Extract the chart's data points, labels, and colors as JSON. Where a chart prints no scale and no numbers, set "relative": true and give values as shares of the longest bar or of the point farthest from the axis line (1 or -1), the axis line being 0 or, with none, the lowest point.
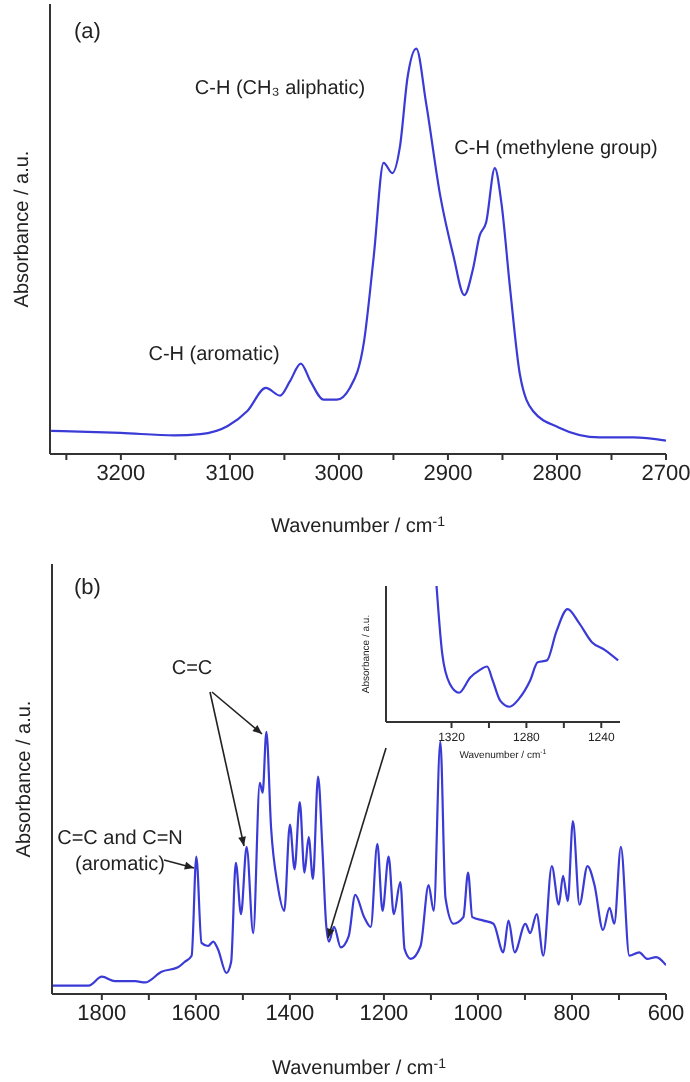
{
  "chart_data": [
    {
      "type": "line",
      "title": "(a)",
      "xlabel": "Wavenumber / cm$^{-1}$",
      "ylabel": "Absorbance / a.u.",
      "relative": true,
      "tick_labels": "x",
      "xlim": [
        3265,
        2700
      ],
      "xticks": [
        {
          "value": 3250,
          "label": null
        },
        3200,
        {
          "value": 3150,
          "label": null
        },
        3100,
        {
          "value": 3050,
          "label": null
        },
        3000,
        {
          "value": 2950,
          "label": null
        },
        2900,
        {
          "value": 2850,
          "label": null
        },
        2800,
        {
          "value": 2750,
          "label": null
        },
        2700
      ],
      "annotations": [
        "C-H (CH₃ aliphatic)",
        "C-H (methylene group)",
        "C-H (aromatic)"
      ],
      "series": [
        {
          "color": "#3a3ad6",
          "x": [
            3264,
            3200,
            3151,
            3127,
            3102,
            3084,
            3067,
            3054,
            3045,
            3035,
            3026,
            3014,
            3002,
            2990,
            2977,
            2968,
            2959,
            2951,
            2944,
            2937,
            2929,
            2920,
            2907,
            2895,
            2885,
            2877,
            2871,
            2865,
            2857,
            2851,
            2843,
            2834,
            2822,
            2798,
            2761,
            2730,
            2700
          ],
          "values": [
            0.057,
            0.052,
            0.046,
            0.049,
            0.069,
            0.106,
            0.163,
            0.144,
            0.179,
            0.223,
            0.179,
            0.134,
            0.134,
            0.163,
            0.277,
            0.489,
            0.718,
            0.693,
            0.759,
            0.93,
            1,
            0.865,
            0.636,
            0.489,
            0.392,
            0.457,
            0.538,
            0.571,
            0.705,
            0.62,
            0.408,
            0.196,
            0.106,
            0.065,
            0.041,
            0.041,
            0.033
          ]
        }
      ]
    },
    {
      "type": "line",
      "title": "(b)",
      "xlabel": "Wavenumber / cm$^{-1}$",
      "ylabel": "Absorbance / a.u.",
      "relative": true,
      "tick_labels": "x",
      "xlim": [
        1906,
        600
      ],
      "xticks": [
        1800,
        {
          "value": 1700,
          "label": null
        },
        1600,
        {
          "value": 1500,
          "label": null
        },
        1400,
        {
          "value": 1300,
          "label": null
        },
        1200,
        {
          "value": 1100,
          "label": null
        },
        1000,
        {
          "value": 900,
          "label": null
        },
        800,
        {
          "value": 700,
          "label": null
        },
        600
      ],
      "annotations": [
        "C=C",
        "C=C and C=N (aromatic)"
      ],
      "series": [
        {
          "color": "#3a3ad6",
          "x": [
            1906,
            1828,
            1800,
            1772,
            1729,
            1708,
            1673,
            1638,
            1624,
            1609,
            1599,
            1588,
            1574,
            1563,
            1553,
            1535,
            1525,
            1515,
            1504,
            1492,
            1478,
            1464,
            1458,
            1450,
            1440,
            1426,
            1412,
            1400,
            1390,
            1379,
            1369,
            1360,
            1351,
            1340,
            1331,
            1323,
            1317,
            1306,
            1292,
            1275,
            1261,
            1242,
            1228,
            1214,
            1203,
            1190,
            1179,
            1165,
            1156,
            1143,
            1122,
            1105,
            1094,
            1080,
            1069,
            1052,
            1031,
            1021,
            1012,
            988,
            967,
            946,
            935,
            922,
            899,
            889,
            875,
            861,
            843,
            828,
            819,
            809,
            798,
            784,
            767,
            752,
            734,
            720,
            710,
            696,
            678,
            657,
            640,
            621,
            600
          ],
          "values": [
            0.032,
            0.032,
            0.066,
            0.049,
            0.049,
            0.044,
            0.085,
            0.102,
            0.122,
            0.146,
            0.524,
            0.195,
            0.183,
            0.2,
            0.171,
            0.08,
            0.122,
            0.5,
            0.305,
            0.561,
            0.232,
            0.805,
            0.768,
            1,
            0.634,
            0.415,
            0.317,
            0.646,
            0.476,
            0.732,
            0.463,
            0.598,
            0.439,
            0.829,
            0.561,
            0.268,
            0.2,
            0.256,
            0.178,
            0.22,
            0.378,
            0.293,
            0.256,
            0.573,
            0.317,
            0.524,
            0.305,
            0.427,
            0.171,
            0.134,
            0.183,
            0.415,
            0.317,
            0.963,
            0.366,
            0.268,
            0.293,
            0.463,
            0.293,
            0.28,
            0.268,
            0.159,
            0.28,
            0.159,
            0.268,
            0.232,
            0.305,
            0.146,
            0.488,
            0.341,
            0.451,
            0.354,
            0.659,
            0.341,
            0.488,
            0.415,
            0.244,
            0.329,
            0.268,
            0.561,
            0.146,
            0.159,
            0.134,
            0.141,
            0.11
          ]
        }
      ]
    },
    {
      "type": "line",
      "xlabel": "Wavenumber / cm$^{-1}$",
      "ylabel": "Absorbance / a.u.",
      "relative": true,
      "tick_labels": "x",
      "xlim": [
        1355,
        1230
      ],
      "xticks": [
        1320,
        {
          "value": 1300,
          "label": null
        },
        1280,
        {
          "value": 1260,
          "label": null
        },
        1240
      ],
      "series": [
        {
          "color": "#3a3ad6",
          "x": [
            1328,
            1325,
            1321,
            1316,
            1310,
            1305,
            1301,
            1298,
            1294,
            1289,
            1284,
            1278,
            1274,
            1269,
            1264,
            1258,
            1252,
            1245,
            1238,
            1231
          ],
          "values": [
            1,
            0.507,
            0.283,
            0.215,
            0.327,
            0.381,
            0.408,
            0.305,
            0.157,
            0.112,
            0.17,
            0.305,
            0.439,
            0.453,
            0.664,
            0.83,
            0.731,
            0.587,
            0.529,
            0.453
          ]
        }
      ]
    }
  ]
}
